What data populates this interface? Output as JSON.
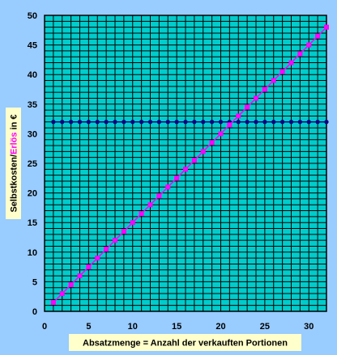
{
  "chart_data": {
    "type": "line",
    "title": "",
    "xlabel": "Absatzmenge = Anzahl der verkauften Portionen",
    "ylabel_parts": [
      {
        "text": "Selbstkosten/",
        "color": "#000000"
      },
      {
        "text": "Erlös",
        "color": "#ff00ff"
      },
      {
        "text": " in €",
        "color": "#000000"
      }
    ],
    "xlim": [
      0,
      32
    ],
    "ylim": [
      0,
      50
    ],
    "x_major_ticks": [
      0,
      5,
      10,
      15,
      20,
      25,
      30
    ],
    "y_major_ticks": [
      0,
      5,
      10,
      15,
      20,
      25,
      30,
      35,
      40,
      45,
      50
    ],
    "x_grid_step": 1,
    "y_grid_step": 1,
    "grid": true,
    "colors": {
      "background": "#99ccff",
      "plot_area": "#00cccc",
      "grid": "#000000",
      "label_box": "#ffffcc"
    },
    "series": [
      {
        "name": "Selbstkosten",
        "color": "#000080",
        "marker": "circle",
        "x": [
          1,
          2,
          3,
          4,
          5,
          6,
          7,
          8,
          9,
          10,
          11,
          12,
          13,
          14,
          15,
          16,
          17,
          18,
          19,
          20,
          21,
          22,
          23,
          24,
          25,
          26,
          27,
          28,
          29,
          30,
          31,
          32
        ],
        "y": [
          32,
          32,
          32,
          32,
          32,
          32,
          32,
          32,
          32,
          32,
          32,
          32,
          32,
          32,
          32,
          32,
          32,
          32,
          32,
          32,
          32,
          32,
          32,
          32,
          32,
          32,
          32,
          32,
          32,
          32,
          32,
          32
        ]
      },
      {
        "name": "Erlös",
        "color": "#ff00ff",
        "marker": "square",
        "x": [
          1,
          2,
          3,
          4,
          5,
          6,
          7,
          8,
          9,
          10,
          11,
          12,
          13,
          14,
          15,
          16,
          17,
          18,
          19,
          20,
          21,
          22,
          23,
          24,
          25,
          26,
          27,
          28,
          29,
          30,
          31,
          32
        ],
        "y": [
          1.5,
          3,
          4.5,
          6,
          7.5,
          9,
          10.5,
          12,
          13.5,
          15,
          16.5,
          18,
          19.5,
          21,
          22.5,
          24,
          25.5,
          27,
          28.5,
          30,
          31.5,
          33,
          34.5,
          36,
          37.5,
          39,
          40.5,
          42,
          43.5,
          45,
          46.5,
          48
        ]
      }
    ]
  }
}
